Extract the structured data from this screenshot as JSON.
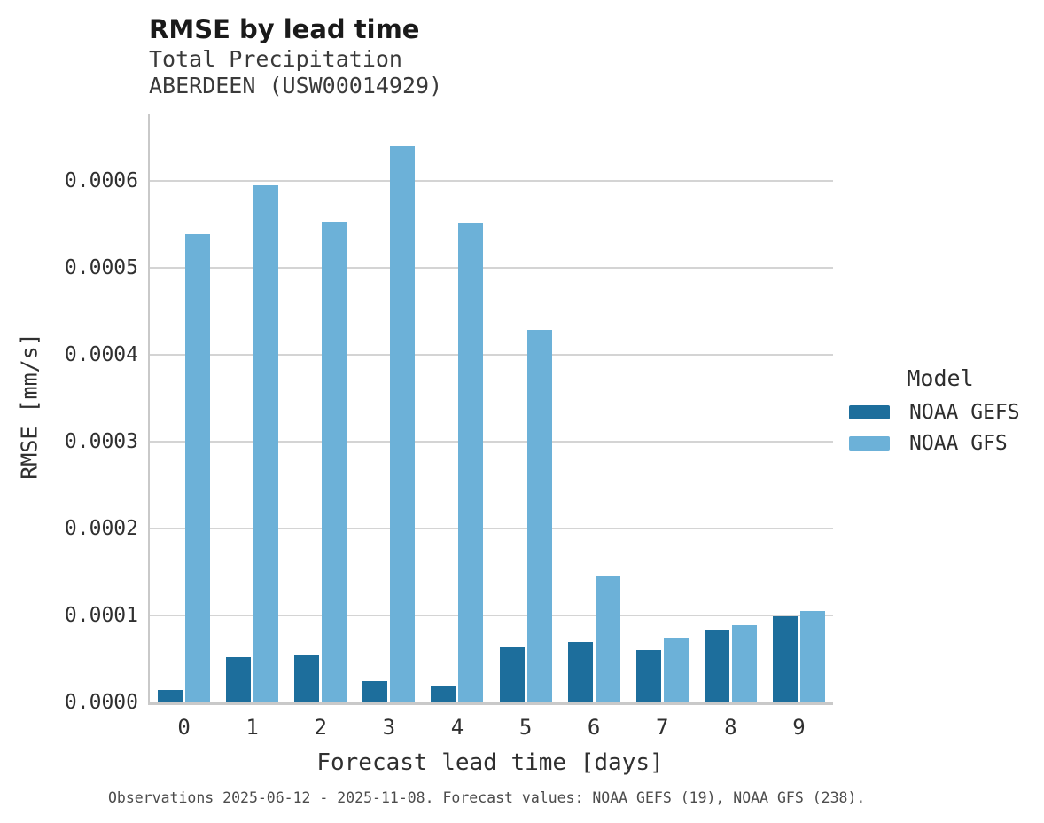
{
  "header": {
    "title": "RMSE by lead time",
    "subtitle_line1": "Total Precipitation",
    "subtitle_line2": "ABERDEEN (USW00014929)"
  },
  "chart_data": {
    "type": "bar",
    "title": "RMSE by lead time",
    "subtitle": [
      "Total Precipitation",
      "ABERDEEN (USW00014929)"
    ],
    "categories": [
      "0",
      "1",
      "2",
      "3",
      "4",
      "5",
      "6",
      "7",
      "8",
      "9"
    ],
    "series": [
      {
        "name": "NOAA GEFS",
        "color": "#1d6e9c",
        "values": [
          1.4e-05,
          5.2e-05,
          5.4e-05,
          2.4e-05,
          1.9e-05,
          6.4e-05,
          6.9e-05,
          6e-05,
          8.4e-05,
          9.9e-05
        ]
      },
      {
        "name": "NOAA GFS",
        "color": "#6cb1d8",
        "values": [
          0.000539,
          0.000595,
          0.000553,
          0.00064,
          0.000551,
          0.000429,
          0.000146,
          7.5e-05,
          8.9e-05,
          0.000105
        ]
      }
    ],
    "xlabel": "Forecast lead time [days]",
    "ylabel": "RMSE [mm/s]",
    "ylim": [
      0,
      0.000677
    ],
    "yticks": [
      0,
      0.0001,
      0.0002,
      0.0003,
      0.0004,
      0.0005,
      0.0006
    ],
    "ytick_labels": [
      "0.0000",
      "0.0001",
      "0.0002",
      "0.0003",
      "0.0004",
      "0.0005",
      "0.0006"
    ],
    "grid": "horizontal",
    "legend_position": "right",
    "gridline_color": "#d4d4d4",
    "spine_color": "#c9c9c9"
  },
  "legend": {
    "title": "Model",
    "items": [
      {
        "label": "NOAA GEFS",
        "color": "#1d6e9c"
      },
      {
        "label": "NOAA GFS",
        "color": "#6cb1d8"
      }
    ]
  },
  "footer": {
    "caption": "Observations 2025-06-12 - 2025-11-08. Forecast values: NOAA GEFS (19), NOAA GFS (238)."
  }
}
